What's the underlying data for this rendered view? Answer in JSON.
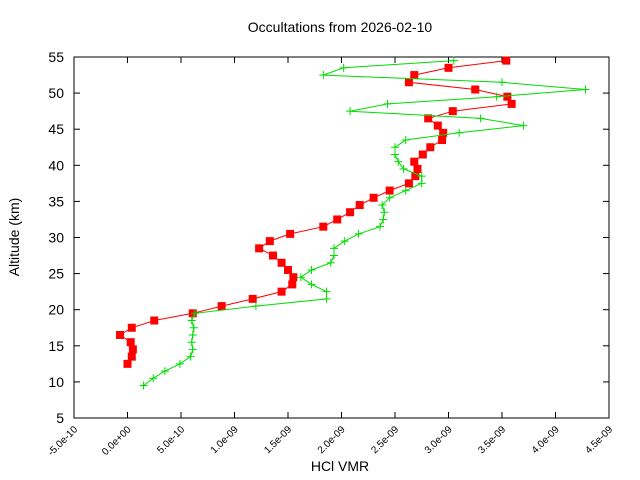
{
  "chart_data": {
    "type": "line",
    "title": "Occultations from 2026-02-10",
    "xlabel": "HCl VMR",
    "ylabel": "Altitude (km)",
    "xlim": [
      -5e-10,
      4.5e-09
    ],
    "ylim": [
      5,
      55
    ],
    "x_ticks": [
      "-5.0e-10",
      "0.0e+00",
      "5.0e-10",
      "1.0e-09",
      "1.5e-09",
      "2.0e-09",
      "2.5e-09",
      "3.0e-09",
      "3.5e-09",
      "4.0e-09",
      "4.5e-09"
    ],
    "x_tick_values": [
      -5e-10,
      0,
      5e-10,
      1e-09,
      1.5e-09,
      2e-09,
      2.5e-09,
      3e-09,
      3.5e-09,
      4e-09,
      4.5e-09
    ],
    "y_ticks": [
      "5",
      "10",
      "15",
      "20",
      "25",
      "30",
      "35",
      "40",
      "45",
      "50",
      "55"
    ],
    "y_tick_values": [
      5,
      10,
      15,
      20,
      25,
      30,
      35,
      40,
      45,
      50,
      55
    ],
    "grid": false,
    "legend": null,
    "series": [
      {
        "name": "red-squares",
        "color": "#ff0000",
        "marker": "square",
        "points": [
          [
            3.54e-09,
            54.5
          ],
          [
            3e-09,
            53.5
          ],
          [
            2.68e-09,
            52.5
          ],
          [
            2.63e-09,
            51.5
          ],
          [
            3.25e-09,
            50.5
          ],
          [
            3.55e-09,
            49.5
          ],
          [
            3.59e-09,
            48.5
          ],
          [
            3.04e-09,
            47.5
          ],
          [
            2.81e-09,
            46.5
          ],
          [
            2.9e-09,
            45.5
          ],
          [
            2.95e-09,
            44.5
          ],
          [
            2.94e-09,
            43.5
          ],
          [
            2.83e-09,
            42.5
          ],
          [
            2.76e-09,
            41.5
          ],
          [
            2.68e-09,
            40.5
          ],
          [
            2.71e-09,
            39.5
          ],
          [
            2.69e-09,
            38.5
          ],
          [
            2.63e-09,
            37.5
          ],
          [
            2.45e-09,
            36.5
          ],
          [
            2.3e-09,
            35.5
          ],
          [
            2.17e-09,
            34.5
          ],
          [
            2.08e-09,
            33.5
          ],
          [
            1.96e-09,
            32.5
          ],
          [
            1.83e-09,
            31.5
          ],
          [
            1.52e-09,
            30.5
          ],
          [
            1.33e-09,
            29.5
          ],
          [
            1.23e-09,
            28.5
          ],
          [
            1.36e-09,
            27.5
          ],
          [
            1.44e-09,
            26.5
          ],
          [
            1.5e-09,
            25.5
          ],
          [
            1.55e-09,
            24.5
          ],
          [
            1.54e-09,
            23.5
          ],
          [
            1.44e-09,
            22.5
          ],
          [
            1.17e-09,
            21.5
          ],
          [
            8.8e-10,
            20.5
          ],
          [
            6.1e-10,
            19.5
          ],
          [
            2.5e-10,
            18.5
          ],
          [
            4e-11,
            17.5
          ],
          [
            -7e-11,
            16.5
          ],
          [
            3e-11,
            15.5
          ],
          [
            5e-11,
            14.5
          ],
          [
            4e-11,
            13.5
          ],
          [
            0.0,
            12.5
          ]
        ]
      },
      {
        "name": "green-crosses",
        "color": "#00dd00",
        "marker": "plus",
        "points": [
          [
            3.05e-09,
            54.5
          ],
          [
            2.02e-09,
            53.5
          ],
          [
            1.83e-09,
            52.5
          ],
          [
            3.5e-09,
            51.5
          ],
          [
            4.28e-09,
            50.5
          ],
          [
            3.45e-09,
            49.5
          ],
          [
            2.43e-09,
            48.5
          ],
          [
            2.08e-09,
            47.5
          ],
          [
            3.3e-09,
            46.5
          ],
          [
            3.7e-09,
            45.5
          ],
          [
            3.1e-09,
            44.5
          ],
          [
            2.6e-09,
            43.5
          ],
          [
            2.5e-09,
            42.5
          ],
          [
            2.5e-09,
            41.5
          ],
          [
            2.53e-09,
            40.5
          ],
          [
            2.58e-09,
            39.5
          ],
          [
            2.75e-09,
            38.5
          ],
          [
            2.75e-09,
            37.5
          ],
          [
            2.6e-09,
            36.5
          ],
          [
            2.45e-09,
            35.5
          ],
          [
            2.38e-09,
            34.5
          ],
          [
            2.4e-09,
            33.5
          ],
          [
            2.39e-09,
            32.5
          ],
          [
            2.36e-09,
            31.5
          ],
          [
            2.16e-09,
            30.5
          ],
          [
            2.03e-09,
            29.5
          ],
          [
            1.93e-09,
            28.5
          ],
          [
            1.93e-09,
            27.5
          ],
          [
            1.9e-09,
            26.5
          ],
          [
            1.72e-09,
            25.5
          ],
          [
            1.62e-09,
            24.5
          ],
          [
            1.72e-09,
            23.5
          ],
          [
            1.86e-09,
            22.5
          ],
          [
            1.86e-09,
            21.5
          ],
          [
            1.2e-09,
            20.5
          ],
          [
            6.3e-10,
            19.5
          ],
          [
            6e-10,
            18.5
          ],
          [
            6.2e-10,
            17.5
          ],
          [
            6.1e-10,
            16.5
          ],
          [
            6e-10,
            15.5
          ],
          [
            6.1e-10,
            14.5
          ],
          [
            5.9e-10,
            13.5
          ],
          [
            4.9e-10,
            12.5
          ],
          [
            3.5e-10,
            11.5
          ],
          [
            2.4e-10,
            10.5
          ],
          [
            1.5e-10,
            9.5
          ]
        ]
      }
    ]
  }
}
